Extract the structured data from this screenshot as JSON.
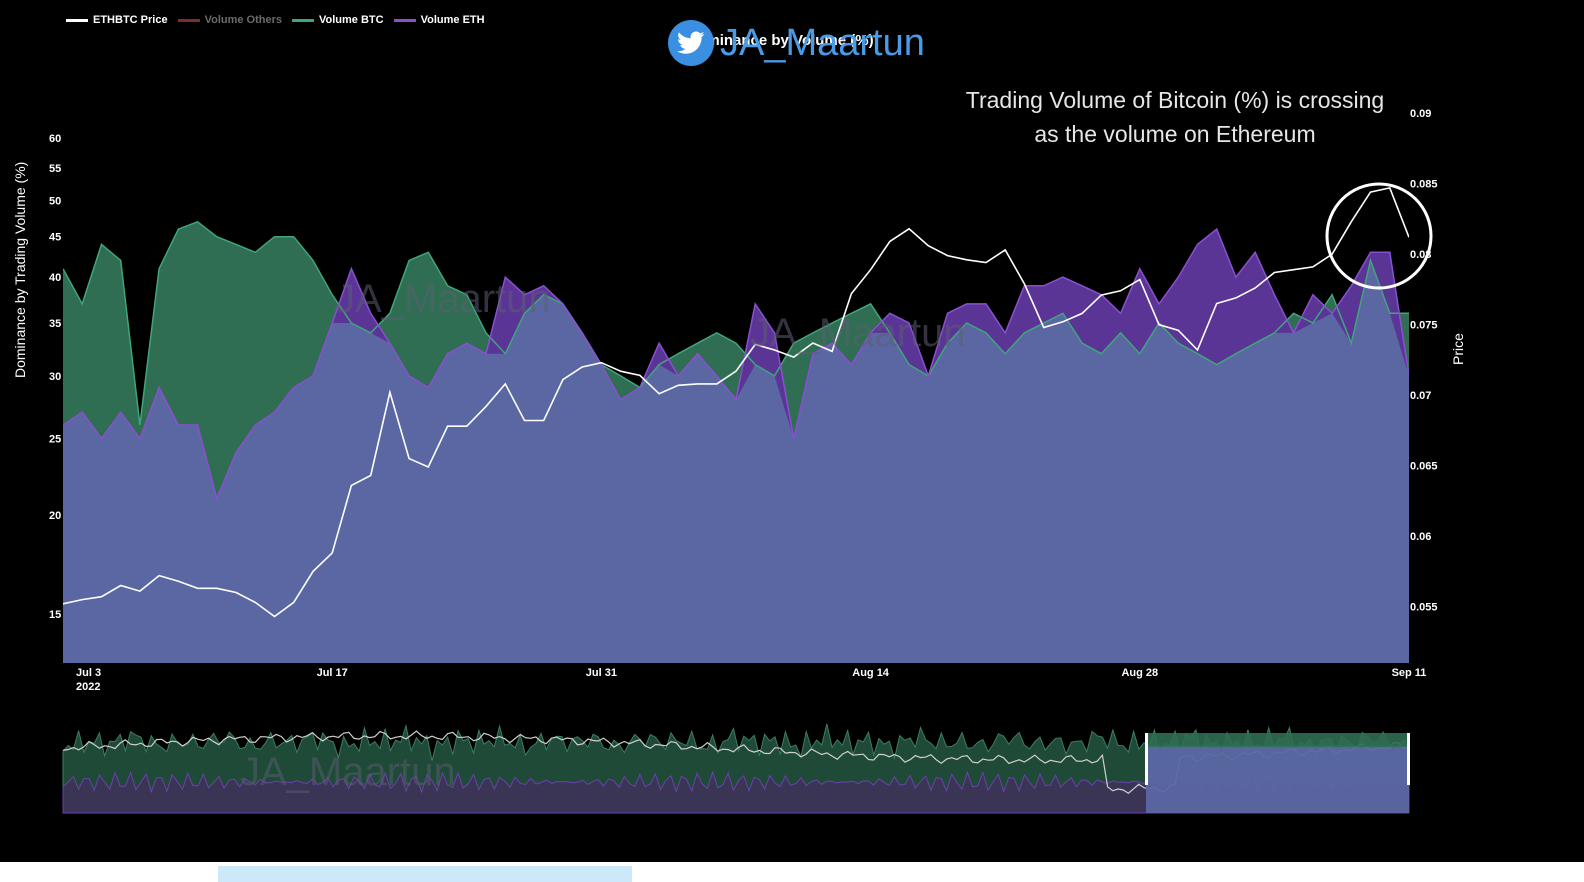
{
  "legend": [
    {
      "label": "ETHBTC Price",
      "color": "#ffffff",
      "text_color": "#ffffff"
    },
    {
      "label": "Volume Others",
      "color": "#7b2f2a",
      "text_color": "#6b6b6b"
    },
    {
      "label": "Volume BTC",
      "color": "#3fa57a",
      "text_color": "#ffffff"
    },
    {
      "label": "Volume ETH",
      "color": "#8a4fd0",
      "text_color": "#ffffff"
    }
  ],
  "handle": "JA_Maartun",
  "watermark": "JA_Maartun",
  "annotation": "Trading Volume of Bitcoin (%) is crossing as the volume on Ethereum",
  "colors": {
    "background": "#000000",
    "btc_fill": "#2f6e52",
    "btc_line": "#3fa57a",
    "eth_fill": "#5a3596",
    "eth_line": "#8a4fd0",
    "blend_fill": "#5b67a3",
    "blend_line": "#7a86c4",
    "price_line": "#ffffff",
    "watermark": "#5c5e73"
  },
  "chart_data": {
    "type": "area",
    "title": "Dominance by Volume (%)",
    "y_left_label": "Dominance by Trading Volume (%)",
    "y_right_label": "Price",
    "y_left_scale": "log",
    "y_left_range": [
      13,
      70
    ],
    "y_left_ticks": [
      15,
      20,
      25,
      30,
      35,
      40,
      45,
      50,
      55,
      60
    ],
    "y_right_range": [
      0.051,
      0.092
    ],
    "y_right_ticks": [
      "0.055",
      "0.06",
      "0.065",
      "0.07",
      "0.075",
      "0.08",
      "0.085",
      "0.09"
    ],
    "x_range": [
      "2022-07-03",
      "2022-09-11"
    ],
    "x_ticks": [
      {
        "date": "2022-07-03",
        "label": "Jul 3",
        "sub": "2022"
      },
      {
        "date": "2022-07-17",
        "label": "Jul 17",
        "sub": ""
      },
      {
        "date": "2022-07-31",
        "label": "Jul 31",
        "sub": ""
      },
      {
        "date": "2022-08-14",
        "label": "Aug 14",
        "sub": ""
      },
      {
        "date": "2022-08-28",
        "label": "Aug 28",
        "sub": ""
      },
      {
        "date": "2022-09-11",
        "label": "Sep 11",
        "sub": ""
      }
    ],
    "dates": [
      "2022-07-03",
      "2022-07-04",
      "2022-07-05",
      "2022-07-06",
      "2022-07-07",
      "2022-07-08",
      "2022-07-09",
      "2022-07-10",
      "2022-07-11",
      "2022-07-12",
      "2022-07-13",
      "2022-07-14",
      "2022-07-15",
      "2022-07-16",
      "2022-07-17",
      "2022-07-18",
      "2022-07-19",
      "2022-07-20",
      "2022-07-21",
      "2022-07-22",
      "2022-07-23",
      "2022-07-24",
      "2022-07-25",
      "2022-07-26",
      "2022-07-27",
      "2022-07-28",
      "2022-07-29",
      "2022-07-30",
      "2022-07-31",
      "2022-08-01",
      "2022-08-02",
      "2022-08-03",
      "2022-08-04",
      "2022-08-05",
      "2022-08-06",
      "2022-08-07",
      "2022-08-08",
      "2022-08-09",
      "2022-08-10",
      "2022-08-11",
      "2022-08-12",
      "2022-08-13",
      "2022-08-14",
      "2022-08-15",
      "2022-08-16",
      "2022-08-17",
      "2022-08-18",
      "2022-08-19",
      "2022-08-20",
      "2022-08-21",
      "2022-08-22",
      "2022-08-23",
      "2022-08-24",
      "2022-08-25",
      "2022-08-26",
      "2022-08-27",
      "2022-08-28",
      "2022-08-29",
      "2022-08-30",
      "2022-08-31",
      "2022-09-01",
      "2022-09-02",
      "2022-09-03",
      "2022-09-04",
      "2022-09-05",
      "2022-09-06",
      "2022-09-07",
      "2022-09-08",
      "2022-09-09",
      "2022-09-10",
      "2022-09-11"
    ],
    "series": [
      {
        "name": "Volume BTC",
        "axis": "left",
        "values": [
          41,
          37,
          44,
          42,
          26,
          41,
          46,
          47,
          45,
          44,
          43,
          45,
          45,
          42,
          38,
          35,
          34,
          36,
          42,
          43,
          39,
          38,
          34,
          32,
          36,
          38,
          37,
          34,
          31,
          30,
          29,
          31,
          32,
          33,
          34,
          33,
          31,
          30,
          33,
          34,
          35,
          36,
          37,
          34,
          31,
          30,
          33,
          35,
          34,
          32,
          34,
          35,
          36,
          33,
          32,
          34,
          32,
          35,
          33,
          32,
          31,
          32,
          33,
          34,
          36,
          35,
          38,
          33,
          42,
          36,
          36
        ]
      },
      {
        "name": "Volume ETH",
        "axis": "left",
        "values": [
          26,
          27,
          25,
          27,
          25,
          29,
          26,
          26,
          21,
          24,
          26,
          27,
          29,
          30,
          35,
          41,
          36,
          33,
          30,
          29,
          32,
          33,
          32,
          40,
          38,
          39,
          37,
          34,
          31,
          28,
          29,
          33,
          30,
          32,
          30,
          28,
          37,
          34,
          25,
          32,
          33,
          31,
          34,
          36,
          35,
          30,
          36,
          37,
          37,
          34,
          39,
          39,
          40,
          39,
          38,
          36,
          41,
          37,
          40,
          44,
          46,
          40,
          43,
          38,
          34,
          38,
          36,
          39,
          43,
          43,
          30
        ]
      },
      {
        "name": "ETHBTC Price",
        "axis": "right",
        "values": [
          0.0552,
          0.0555,
          0.0557,
          0.0565,
          0.0561,
          0.0572,
          0.0568,
          0.0563,
          0.0563,
          0.056,
          0.0553,
          0.0543,
          0.0553,
          0.0575,
          0.0588,
          0.0636,
          0.0643,
          0.0702,
          0.0655,
          0.0649,
          0.0678,
          0.0678,
          0.0692,
          0.0708,
          0.0682,
          0.0682,
          0.0711,
          0.072,
          0.0723,
          0.0717,
          0.0714,
          0.0701,
          0.0707,
          0.0708,
          0.0708,
          0.0717,
          0.0736,
          0.0732,
          0.0727,
          0.0737,
          0.0731,
          0.0772,
          0.0789,
          0.0809,
          0.0818,
          0.0806,
          0.0799,
          0.0796,
          0.0794,
          0.0803,
          0.0779,
          0.0748,
          0.0752,
          0.0758,
          0.0771,
          0.0774,
          0.0782,
          0.075,
          0.0746,
          0.0732,
          0.0765,
          0.0769,
          0.0776,
          0.0787,
          0.0789,
          0.0791,
          0.08,
          0.0823,
          0.0844,
          0.0847,
          0.0812
        ]
      }
    ],
    "navigator": {
      "window_start": "2022-07-03",
      "window_end": "2022-09-11"
    },
    "legend_position": "top-left",
    "grid": false
  }
}
